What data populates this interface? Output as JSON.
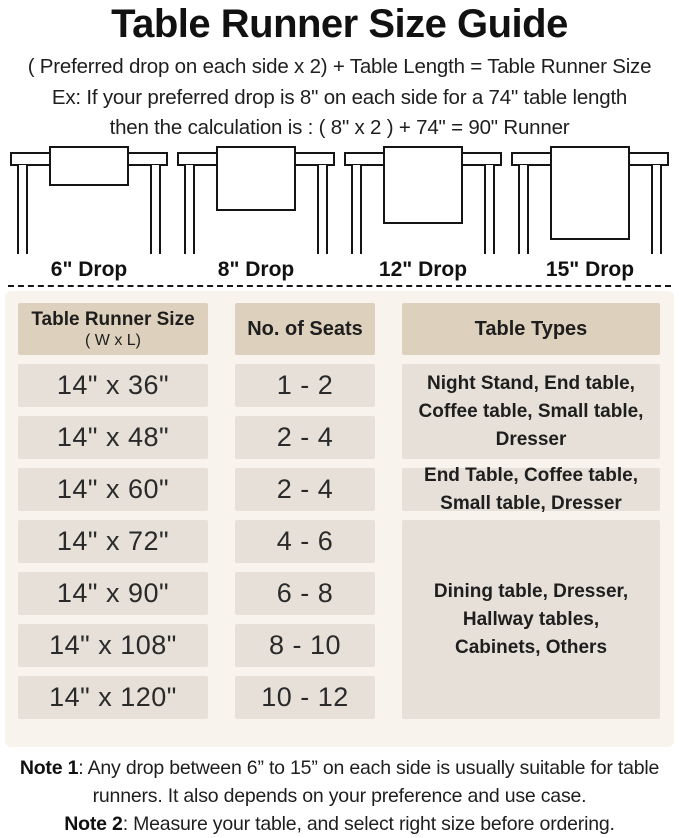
{
  "header": {
    "title": "Table Runner Size Guide",
    "formula": "( Preferred drop on each side x 2) + Table Length = Table Runner Size",
    "example_line1": "Ex: If your preferred drop is 8\" on each side for a 74\" table length",
    "example_line2": "then the calculation is : ( 8\" x 2 ) + 74\" = 90\" Runner"
  },
  "illustrations": [
    {
      "label": "6\" Drop"
    },
    {
      "label": "8\" Drop"
    },
    {
      "label": "12\" Drop"
    },
    {
      "label": "15\" Drop"
    }
  ],
  "size_table": {
    "headers": {
      "size_title": "Table Runner Size",
      "size_subtitle": "( W x L)",
      "seats": "No. of Seats",
      "types": "Table Types"
    },
    "rows": [
      {
        "size": "14\" x 36\"",
        "seats": "1 - 2"
      },
      {
        "size": "14\" x 48\"",
        "seats": "2 - 4"
      },
      {
        "size": "14\" x 60\"",
        "seats": "2 - 4"
      },
      {
        "size": "14\" x 72\"",
        "seats": "4 - 6"
      },
      {
        "size": "14\" x 90\"",
        "seats": "6 - 8"
      },
      {
        "size": "14\" x 108\"",
        "seats": "8 - 10"
      },
      {
        "size": "14\" x 120\"",
        "seats": "10 - 12"
      }
    ],
    "type_groups": [
      {
        "text": "Night Stand, End table, Coffee table, Small table, Dresser",
        "spans_rows": "1-2"
      },
      {
        "text": "End Table, Coffee table, Small table, Dresser",
        "spans_rows": "3"
      },
      {
        "text": "Dining table, Dresser, Hallway tables, Cabinets, Others",
        "spans_rows": "4-7"
      }
    ]
  },
  "notes": [
    {
      "label": "Note 1",
      "text": ": Any drop between 6” to 15” on each side is usually suitable for table runners. It also depends on your preference and use case."
    },
    {
      "label": "Note 2",
      "text": ": Measure your table, and select right size before ordering."
    }
  ],
  "colors": {
    "header_cell_bg": "#ddd0bc",
    "data_cell_bg": "#e6e0d9",
    "panel_bg": "#f9f3ed",
    "line_color": "#151515",
    "text_color": "#1e1e1e"
  }
}
